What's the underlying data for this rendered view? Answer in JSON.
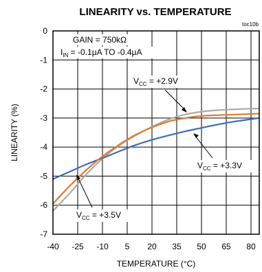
{
  "chart_data": {
    "type": "line",
    "title": "LINEARITY vs. TEMPERATURE",
    "code": "toc10b",
    "xlabel": "TEMPERATURE (°C)",
    "ylabel": "LINEARITY (%)",
    "xlim": [
      -40,
      85
    ],
    "ylim": [
      -7,
      0
    ],
    "x_ticks": [
      "-40",
      "-25",
      "-10",
      "5",
      "20",
      "35",
      "50",
      "65",
      "80"
    ],
    "y_ticks": [
      "0",
      "-1",
      "-2",
      "-3",
      "-4",
      "-5",
      "-6",
      "-7"
    ],
    "grid": true,
    "conditions": {
      "gain": "GAIN = 750kΩ",
      "iin_main": "I",
      "iin_sub": "IN",
      "iin_rest": " = -0.1μA TO -0.4μA"
    },
    "series": [
      {
        "name": "VCC = +2.9V",
        "label_main": "V",
        "label_sub": "CC",
        "label_rest": " = +2.9V",
        "color": "#aaaaaa",
        "x": [
          -40,
          -30,
          -20,
          -10,
          0,
          10,
          20,
          30,
          40,
          50,
          60,
          70,
          85
        ],
        "values": [
          -6.2,
          -5.6,
          -4.95,
          -4.4,
          -3.95,
          -3.6,
          -3.3,
          -3.05,
          -2.88,
          -2.78,
          -2.73,
          -2.7,
          -2.67
        ]
      },
      {
        "name": "VCC = +3.3V",
        "label_main": "V",
        "label_sub": "CC",
        "label_rest": " = +3.3V",
        "color": "#3c6bbf",
        "x": [
          -40,
          -30,
          -20,
          -10,
          0,
          10,
          20,
          30,
          40,
          50,
          60,
          70,
          85
        ],
        "values": [
          -5.1,
          -4.85,
          -4.6,
          -4.38,
          -4.15,
          -3.93,
          -3.75,
          -3.6,
          -3.46,
          -3.34,
          -3.22,
          -3.12,
          -3.0
        ]
      },
      {
        "name": "VCC = +3.5V",
        "label_main": "V",
        "label_sub": "CC",
        "label_rest": " = +3.5V",
        "color": "#e07a2a",
        "x": [
          -40,
          -30,
          -20,
          -10,
          0,
          10,
          20,
          30,
          40,
          50,
          60,
          70,
          85
        ],
        "values": [
          -5.95,
          -5.35,
          -4.8,
          -4.32,
          -3.92,
          -3.58,
          -3.32,
          -3.12,
          -3.0,
          -2.93,
          -2.9,
          -2.88,
          -2.85
        ]
      }
    ]
  }
}
